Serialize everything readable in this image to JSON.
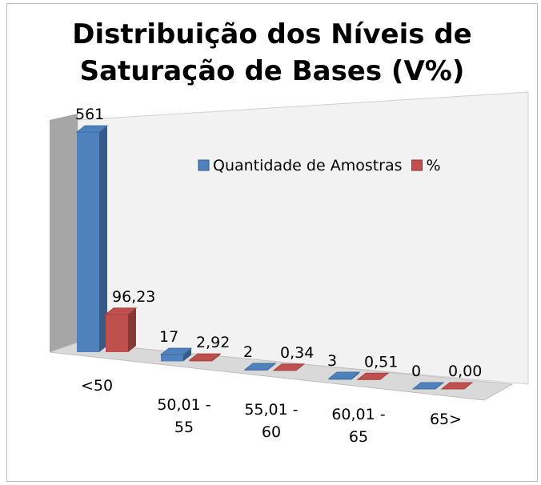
{
  "chart_data": {
    "type": "bar3d",
    "title": "Distribuição dos Níveis de Saturação de Bases (V%)",
    "categories": [
      "<50",
      "50,01 - 55",
      "55,01 - 60",
      "60,01 - 65",
      "65>"
    ],
    "series": [
      {
        "name": "Quantidade de Amostras",
        "color": "#4f81bd",
        "values": [
          561,
          17,
          2,
          3,
          0
        ]
      },
      {
        "name": "%",
        "color": "#c0504d",
        "values": [
          96.23,
          2.92,
          0.34,
          0.51,
          0.0
        ],
        "value_labels": [
          "96,23",
          "2,92",
          "0,34",
          "0,51",
          "0,00"
        ]
      }
    ],
    "legend": "top-right"
  }
}
